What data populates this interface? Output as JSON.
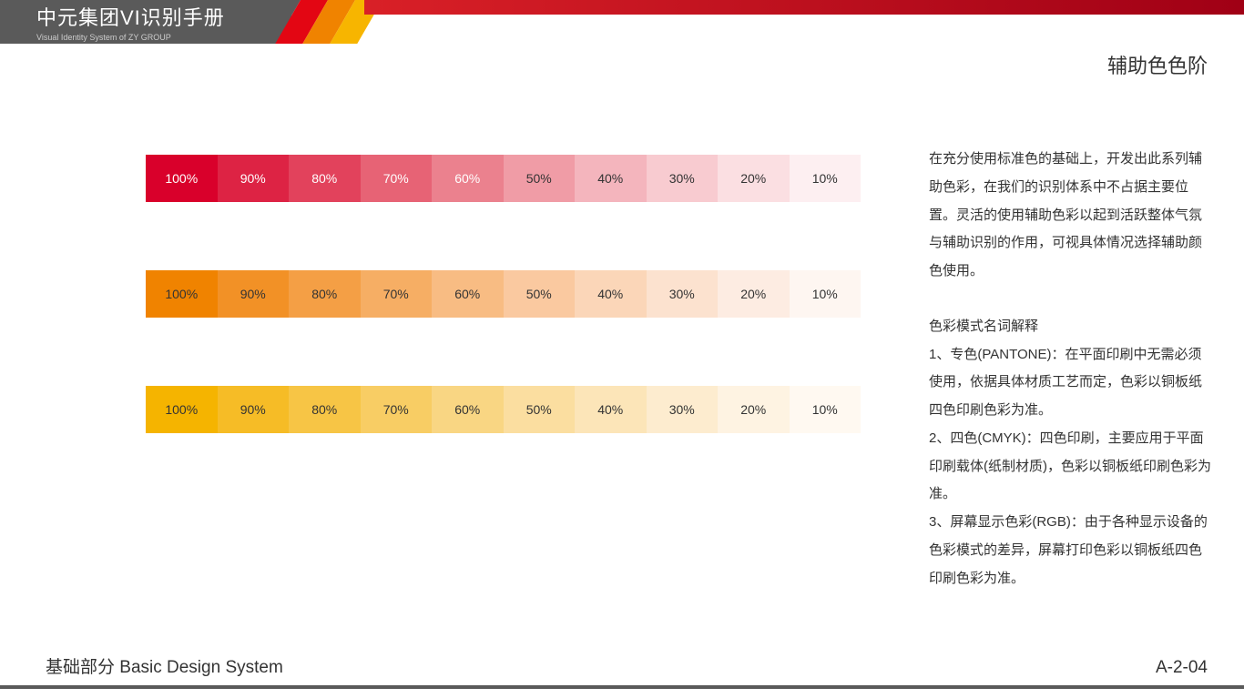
{
  "header": {
    "title": "中元集团VI识别手册",
    "subtitle": "Visual Identity System of ZY GROUP",
    "diag_colors": [
      "#5a5a5a",
      "#e30613",
      "#f08300",
      "#f7b500"
    ],
    "top_bar_gradient_from": "#d92027",
    "top_bar_gradient_to": "#a00015"
  },
  "page_heading": "辅助色色阶",
  "scales": {
    "labels": [
      "100%",
      "90%",
      "80%",
      "70%",
      "60%",
      "50%",
      "40%",
      "30%",
      "20%",
      "10%"
    ],
    "swatch_height": 52,
    "row_gap": 75,
    "rows": [
      {
        "name": "red-scale",
        "colors": [
          "#d9002b",
          "#dd2344",
          "#e2425c",
          "#e76375",
          "#eb818e",
          "#f09ca6",
          "#f4b5bd",
          "#f8cbd0",
          "#fbdfe2",
          "#fdeff1"
        ],
        "label_colors": [
          "#fff",
          "#fff",
          "#fff",
          "#fff",
          "#fff",
          "#333",
          "#333",
          "#333",
          "#333",
          "#333"
        ]
      },
      {
        "name": "orange-scale",
        "colors": [
          "#f08300",
          "#f29126",
          "#f49f45",
          "#f6ae64",
          "#f8bc83",
          "#fac9a0",
          "#fbd6b8",
          "#fce2cf",
          "#fdece2",
          "#fef6f1"
        ],
        "label_colors": [
          "#333",
          "#333",
          "#333",
          "#333",
          "#333",
          "#333",
          "#333",
          "#333",
          "#333",
          "#333"
        ]
      },
      {
        "name": "yellow-scale",
        "colors": [
          "#f5b400",
          "#f6bc26",
          "#f7c545",
          "#f8cd64",
          "#f9d683",
          "#fbdea0",
          "#fce5b8",
          "#fdeccf",
          "#fef3e2",
          "#fff9f1"
        ],
        "label_colors": [
          "#333",
          "#333",
          "#333",
          "#333",
          "#333",
          "#333",
          "#333",
          "#333",
          "#333",
          "#333"
        ]
      }
    ]
  },
  "right_text": {
    "para1": "在充分使用标准色的基础上，开发出此系列辅助色彩，在我们的识别体系中不占据主要位置。灵活的使用辅助色彩以起到活跃整体气氛与辅助识别的作用，可视具体情况选择辅助颜色使用。",
    "para2_title": "色彩模式名词解释",
    "para2_item1": "1、专色(PANTONE)：在平面印刷中无需必须使用，依据具体材质工艺而定，色彩以铜板纸四色印刷色彩为准。",
    "para2_item2": "2、四色(CMYK)：四色印刷，主要应用于平面印刷载体(纸制材质)，色彩以铜板纸印刷色彩为准。",
    "para2_item3": "3、屏幕显示色彩(RGB)：由于各种显示设备的色彩模式的差异，屏幕打印色彩以铜板纸四色印刷色彩为准。"
  },
  "footer": {
    "section": "基础部分 Basic Design System",
    "code": "A-2-04",
    "line_color": "#5a5a5a"
  }
}
